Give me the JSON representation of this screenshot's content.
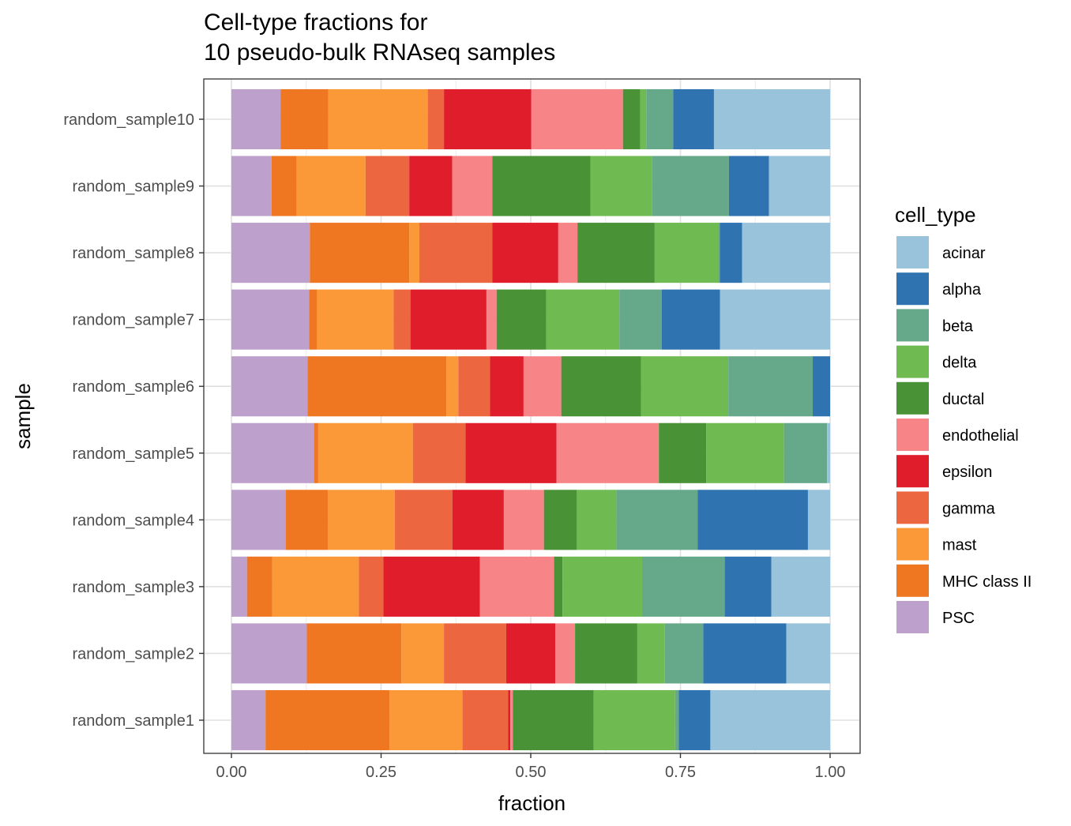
{
  "chart_data": {
    "type": "bar",
    "orientation": "horizontal",
    "stacked": true,
    "title_lines": [
      "Cell-type fractions for",
      "10 pseudo-bulk RNAseq samples"
    ],
    "xlabel": "fraction",
    "ylabel": "sample",
    "xlim": [
      0,
      1
    ],
    "xticks": [
      "0.00",
      "0.25",
      "0.50",
      "0.75",
      "1.00"
    ],
    "grid": true,
    "legend": {
      "title": "cell_type",
      "position": "right",
      "entries": [
        "acinar",
        "alpha",
        "beta",
        "delta",
        "ductal",
        "endothelial",
        "epsilon",
        "gamma",
        "mast",
        "MHC class II",
        "PSC"
      ]
    },
    "colors": {
      "acinar": "#99C3DB",
      "alpha": "#2F74B1",
      "beta": "#66A98A",
      "delta": "#6FBB51",
      "ductal": "#4A9236",
      "endothelial": "#F78588",
      "epsilon": "#E01E2B",
      "gamma": "#EC6740",
      "mast": "#FB9837",
      "MHC class II": "#EF7722",
      "PSC": "#BDA0CB"
    },
    "stack_order": [
      "PSC",
      "MHC class II",
      "mast",
      "gamma",
      "epsilon",
      "endothelial",
      "ductal",
      "delta",
      "beta",
      "alpha",
      "acinar"
    ],
    "categories": [
      "random_sample1",
      "random_sample2",
      "random_sample3",
      "random_sample4",
      "random_sample5",
      "random_sample6",
      "random_sample7",
      "random_sample8",
      "random_sample9",
      "random_sample10"
    ],
    "series": [
      {
        "name": "PSC",
        "values": [
          0.057,
          0.126,
          0.026,
          0.091,
          0.138,
          0.127,
          0.13,
          0.131,
          0.067,
          0.082
        ]
      },
      {
        "name": "MHC class II",
        "values": [
          0.207,
          0.158,
          0.042,
          0.07,
          0.007,
          0.232,
          0.013,
          0.166,
          0.042,
          0.08
        ]
      },
      {
        "name": "mast",
        "values": [
          0.122,
          0.071,
          0.145,
          0.112,
          0.158,
          0.02,
          0.128,
          0.017,
          0.115,
          0.166
        ]
      },
      {
        "name": "gamma",
        "values": [
          0.076,
          0.104,
          0.041,
          0.096,
          0.088,
          0.053,
          0.028,
          0.122,
          0.073,
          0.027
        ]
      },
      {
        "name": "epsilon",
        "values": [
          0.004,
          0.082,
          0.161,
          0.086,
          0.152,
          0.056,
          0.127,
          0.11,
          0.072,
          0.146
        ]
      },
      {
        "name": "endothelial",
        "values": [
          0.004,
          0.033,
          0.124,
          0.067,
          0.171,
          0.063,
          0.017,
          0.032,
          0.067,
          0.153
        ]
      },
      {
        "name": "ductal",
        "values": [
          0.135,
          0.104,
          0.014,
          0.055,
          0.079,
          0.133,
          0.083,
          0.129,
          0.164,
          0.029
        ]
      },
      {
        "name": "delta",
        "values": [
          0.136,
          0.046,
          0.133,
          0.066,
          0.13,
          0.146,
          0.122,
          0.107,
          0.103,
          0.01
        ]
      },
      {
        "name": "beta",
        "values": [
          0.006,
          0.064,
          0.138,
          0.136,
          0.072,
          0.141,
          0.071,
          0.002,
          0.128,
          0.045
        ]
      },
      {
        "name": "alpha",
        "values": [
          0.053,
          0.139,
          0.078,
          0.184,
          0.0,
          0.029,
          0.097,
          0.037,
          0.067,
          0.068
        ]
      },
      {
        "name": "acinar",
        "values": [
          0.2,
          0.073,
          0.098,
          0.037,
          0.005,
          0.0,
          0.184,
          0.147,
          0.102,
          0.194
        ]
      }
    ]
  }
}
